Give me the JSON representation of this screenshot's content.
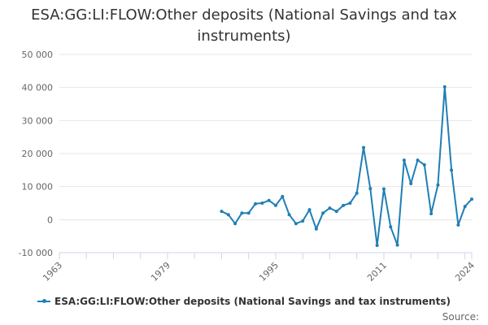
{
  "title": "ESA:GG:LI:FLOW:Other deposits (National Savings and tax instruments)",
  "credits": "Source:",
  "colors": {
    "series": "#1f7fb4",
    "grid": "#e6e6e6",
    "axis": "#ccd6eb",
    "text": "#333333",
    "label": "#666666"
  },
  "chart_data": {
    "type": "line",
    "title": "ESA:GG:LI:FLOW:Other deposits (National Savings and tax instruments)",
    "xlabel": "",
    "ylabel": "",
    "xlim": [
      1963,
      2024
    ],
    "ylim": [
      -10000,
      50000
    ],
    "y_ticks": [
      -10000,
      0,
      10000,
      20000,
      30000,
      40000,
      50000
    ],
    "y_tick_labels": [
      "-10 000",
      "0",
      "10 000",
      "20 000",
      "30 000",
      "40 000",
      "50 000"
    ],
    "x_ticks": [
      1963,
      1979,
      1995,
      2011,
      2024
    ],
    "x_tick_labels": [
      "1963",
      "1979",
      "1995",
      "2011",
      "2024"
    ],
    "grid": true,
    "legend": "bottom-center",
    "series": [
      {
        "name": "ESA:GG:LI:FLOW:Other deposits (National Savings and tax instruments)",
        "x": [
          1987,
          1988,
          1989,
          1990,
          1991,
          1992,
          1993,
          1994,
          1995,
          1996,
          1997,
          1998,
          1999,
          2000,
          2001,
          2002,
          2003,
          2004,
          2005,
          2006,
          2007,
          2008,
          2009,
          2010,
          2011,
          2012,
          2013,
          2014,
          2015,
          2016,
          2017,
          2018,
          2019,
          2020,
          2021,
          2022,
          2023,
          2024
        ],
        "values": [
          2500,
          1500,
          -1200,
          2000,
          2000,
          4800,
          5000,
          5800,
          4300,
          7000,
          1500,
          -1200,
          -400,
          3000,
          -2800,
          2000,
          3500,
          2500,
          4300,
          5000,
          8000,
          21800,
          9400,
          -7800,
          9300,
          -2200,
          -7700,
          18000,
          10900,
          18000,
          16600,
          1800,
          10500,
          40200,
          15000,
          -1600,
          4000,
          6200
        ]
      }
    ]
  }
}
